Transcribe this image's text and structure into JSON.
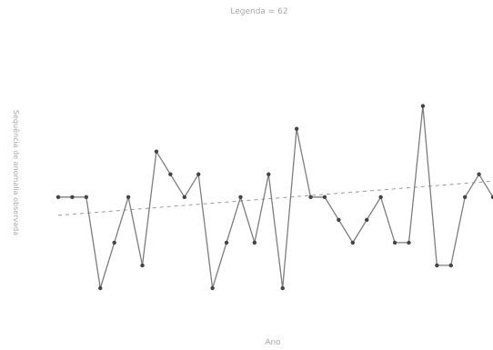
{
  "chart_data": {
    "type": "line",
    "title": "Legenda = 62",
    "xlabel": "Ano",
    "ylabel": "Sequência de anomalia observada",
    "ylim": [
      0,
      5
    ],
    "grid": false,
    "series": [
      {
        "values": [
          2,
          2,
          2,
          0,
          1,
          2,
          0.5,
          3,
          2.5,
          2,
          2.5,
          0,
          1,
          2,
          1,
          2.5,
          0,
          3.5,
          2,
          2,
          1.5,
          1,
          1.5,
          2,
          1,
          1,
          4,
          0.5,
          0.5,
          2,
          2.5,
          2
        ]
      }
    ],
    "trend": {
      "style": "dashed",
      "start": 1.6,
      "end": 2.35
    },
    "colors": {
      "line": "#7d7d7d",
      "marker": "#444444",
      "trend": "#9a9a9a"
    }
  }
}
